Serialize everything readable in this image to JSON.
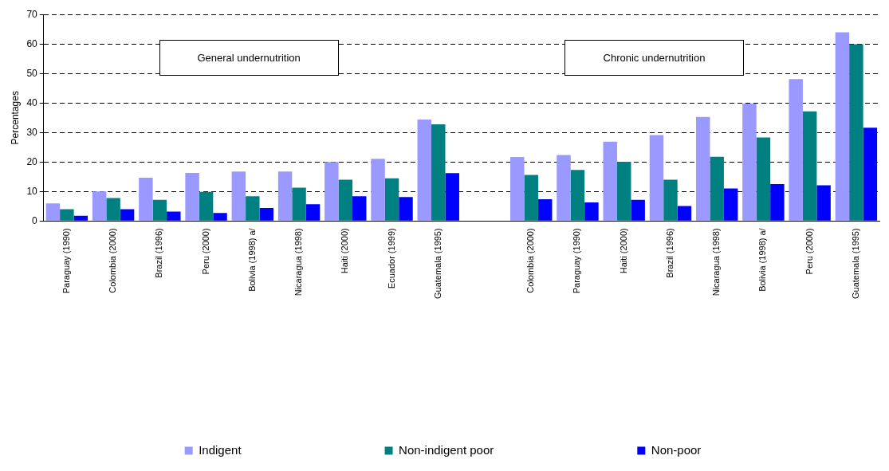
{
  "chart_data": {
    "type": "bar",
    "ylabel": "Percentages",
    "categories": [
      "Paraguay (1990)",
      "Colombia (2000)",
      "Brazil (1996)",
      "Peru (2000)",
      "Bolivia (1998) a/",
      "Nicaragua (1998)",
      "Haiti (2000)",
      "Ecuador (1999)",
      "Guatemala (1995)",
      null,
      "Colombia (2000)",
      "Paraguay (1990)",
      "Haiti (2000)",
      "Brazil (1996)",
      "Nicaragua (1998)",
      "Bolivia (1998) a/",
      "Peru (2000)",
      "Guatemala (1995)"
    ],
    "series": [
      {
        "name": "Indigent",
        "color": "#9999ff",
        "values": [
          6,
          10,
          14.7,
          16.3,
          16.8,
          16.8,
          20,
          21.1,
          34.4,
          null,
          21.7,
          22.4,
          26.9,
          29.1,
          35.3,
          39.8,
          48.1,
          64
        ]
      },
      {
        "name": "Non-indigent poor",
        "color": "#008080",
        "values": [
          4,
          7.8,
          7.2,
          9.9,
          8.4,
          11.3,
          14,
          14.5,
          32.8,
          null,
          15.6,
          17.3,
          20.1,
          14,
          21.8,
          28.3,
          37.2,
          59.9
        ]
      },
      {
        "name": "Non-poor",
        "color": "#0000ff",
        "values": [
          1.8,
          4,
          3.2,
          2.7,
          4.4,
          5.7,
          8.4,
          8.1,
          16.2,
          null,
          7.4,
          6.3,
          7.2,
          5.1,
          11,
          12.5,
          12.1,
          31.6
        ]
      }
    ],
    "ylim": [
      0,
      70
    ],
    "yticks": [
      0,
      10,
      20,
      30,
      40,
      50,
      60,
      70
    ],
    "grid": "y",
    "legend": "bottom",
    "annotations": [
      "General undernutrition",
      "Chronic undernutrition"
    ]
  }
}
